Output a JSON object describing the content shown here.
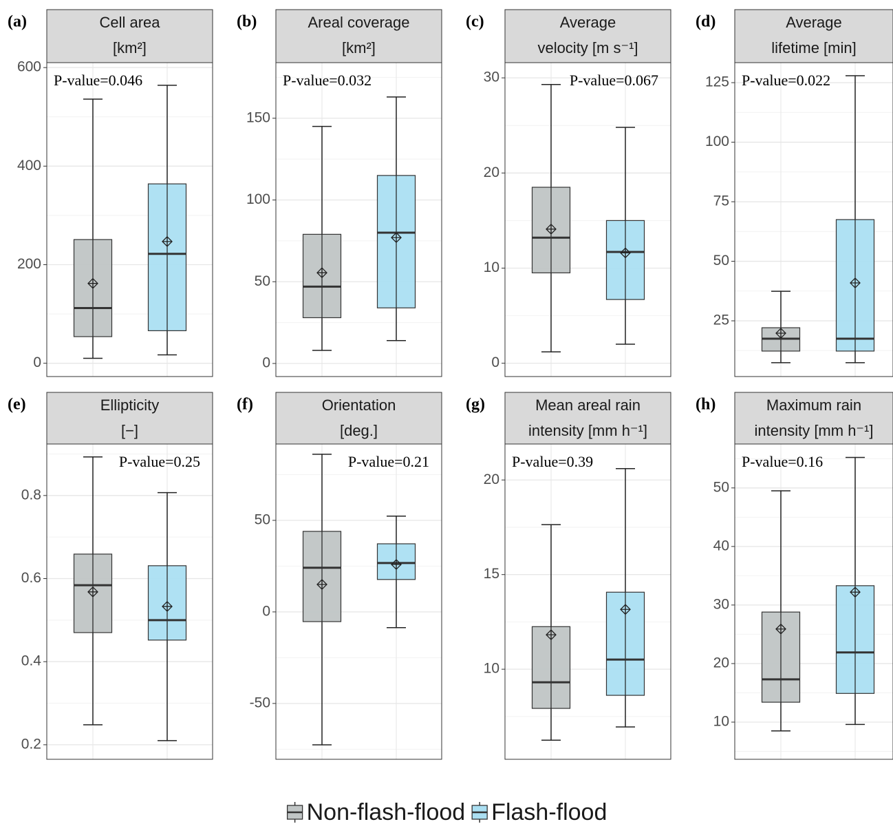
{
  "legend": [
    {
      "name": "Non-flash-flood",
      "color": "#c0c5c5"
    },
    {
      "name": "Flash-flood",
      "color": "#abdff2"
    }
  ],
  "chart_data": [
    {
      "type": "box",
      "panel": "(a)",
      "title": [
        "Cell area",
        "[km²]"
      ],
      "annotation": "P-value=0.046",
      "annotation_corner": "top-left",
      "ylim": [
        -27,
        610
      ],
      "yticks": [
        0,
        200,
        400,
        600
      ],
      "grid": true,
      "boxes": [
        {
          "min": 10,
          "q1": 54,
          "median": 112,
          "q3": 251,
          "max": 536,
          "mean": 162
        },
        {
          "min": 17,
          "q1": 66,
          "median": 222,
          "q3": 364,
          "max": 564,
          "mean": 247
        }
      ]
    },
    {
      "type": "box",
      "panel": "(b)",
      "title": [
        "Areal coverage",
        "[km²]"
      ],
      "annotation": "P-value=0.032",
      "annotation_corner": "top-left",
      "ylim": [
        -8,
        184
      ],
      "yticks": [
        0,
        50,
        100,
        150
      ],
      "grid": true,
      "boxes": [
        {
          "min": 8,
          "q1": 28,
          "median": 47,
          "q3": 79,
          "max": 145,
          "mean": 55.5
        },
        {
          "min": 14,
          "q1": 34,
          "median": 80,
          "q3": 115,
          "max": 163,
          "mean": 77
        }
      ]
    },
    {
      "type": "box",
      "panel": "(c)",
      "title": [
        "Average",
        "velocity [m s⁻¹]"
      ],
      "annotation": "P-value=0.067",
      "annotation_corner": "top-right",
      "ylim": [
        -1.4,
        31.6
      ],
      "yticks": [
        0,
        10,
        20,
        30
      ],
      "grid": true,
      "boxes": [
        {
          "min": 1.2,
          "q1": 9.5,
          "median": 13.2,
          "q3": 18.5,
          "max": 29.3,
          "mean": 14.1
        },
        {
          "min": 2,
          "q1": 6.7,
          "median": 11.7,
          "q3": 15,
          "max": 24.8,
          "mean": 11.6
        }
      ]
    },
    {
      "type": "box",
      "panel": "(d)",
      "title": [
        "Average",
        "lifetime [min]"
      ],
      "annotation": "P-value=0.022",
      "annotation_corner": "top-left",
      "ylim": [
        1.6,
        133.4
      ],
      "yticks": [
        25,
        50,
        75,
        100,
        125
      ],
      "grid": true,
      "boxes": [
        {
          "min": 7.4,
          "q1": 12.3,
          "median": 17.5,
          "q3": 22.1,
          "max": 37.4,
          "mean": 19.8
        },
        {
          "min": 7.4,
          "q1": 12.3,
          "median": 17.5,
          "q3": 67.5,
          "max": 127.9,
          "mean": 40.9
        }
      ]
    },
    {
      "type": "box",
      "panel": "(e)",
      "title": [
        "Ellipticity",
        "[−]"
      ],
      "annotation": "P-value=0.25",
      "annotation_corner": "top-right",
      "ylim": [
        0.165,
        0.924
      ],
      "yticks": [
        0.2,
        0.4,
        0.6,
        0.8
      ],
      "grid": true,
      "boxes": [
        {
          "min": 0.248,
          "q1": 0.47,
          "median": 0.584,
          "q3": 0.659,
          "max": 0.893,
          "mean": 0.568
        },
        {
          "min": 0.21,
          "q1": 0.452,
          "median": 0.5,
          "q3": 0.631,
          "max": 0.807,
          "mean": 0.533
        }
      ]
    },
    {
      "type": "box",
      "panel": "(f)",
      "title": [
        "Orientation",
        "[deg.]"
      ],
      "annotation": "P-value=0.21",
      "annotation_corner": "top-right",
      "ylim": [
        -80.5,
        91.7
      ],
      "yticks": [
        -50,
        0,
        50
      ],
      "grid": true,
      "boxes": [
        {
          "min": -72.6,
          "q1": -5.3,
          "median": 24.1,
          "q3": 44,
          "max": 86.1,
          "mean": 15
        },
        {
          "min": -8.6,
          "q1": 17.7,
          "median": 26.7,
          "q3": 37.2,
          "max": 52.3,
          "mean": 25.9
        }
      ]
    },
    {
      "type": "box",
      "panel": "(g)",
      "title": [
        "Mean areal rain",
        "intensity [mm h⁻¹]"
      ],
      "annotation": "P-value=0.39",
      "annotation_corner": "top-left",
      "ylim": [
        5.24,
        21.9
      ],
      "yticks": [
        10,
        15,
        20
      ],
      "grid": true,
      "boxes": [
        {
          "min": 6.25,
          "q1": 7.93,
          "median": 9.31,
          "q3": 12.25,
          "max": 17.64,
          "mean": 11.82
        },
        {
          "min": 6.95,
          "q1": 8.62,
          "median": 10.51,
          "q3": 14.07,
          "max": 20.6,
          "mean": 13.16
        }
      ]
    },
    {
      "type": "box",
      "panel": "(h)",
      "title": [
        "Maximum rain",
        "intensity [mm h⁻¹]"
      ],
      "annotation": "P-value=0.16",
      "annotation_corner": "top-left",
      "ylim": [
        3.65,
        57.5
      ],
      "yticks": [
        10,
        20,
        30,
        40,
        50
      ],
      "grid": true,
      "boxes": [
        {
          "min": 8.5,
          "q1": 13.4,
          "median": 17.3,
          "q3": 28.8,
          "max": 49.5,
          "mean": 25.9
        },
        {
          "min": 9.6,
          "q1": 14.9,
          "median": 21.9,
          "q3": 33.3,
          "max": 55.2,
          "mean": 32.2
        }
      ]
    }
  ]
}
